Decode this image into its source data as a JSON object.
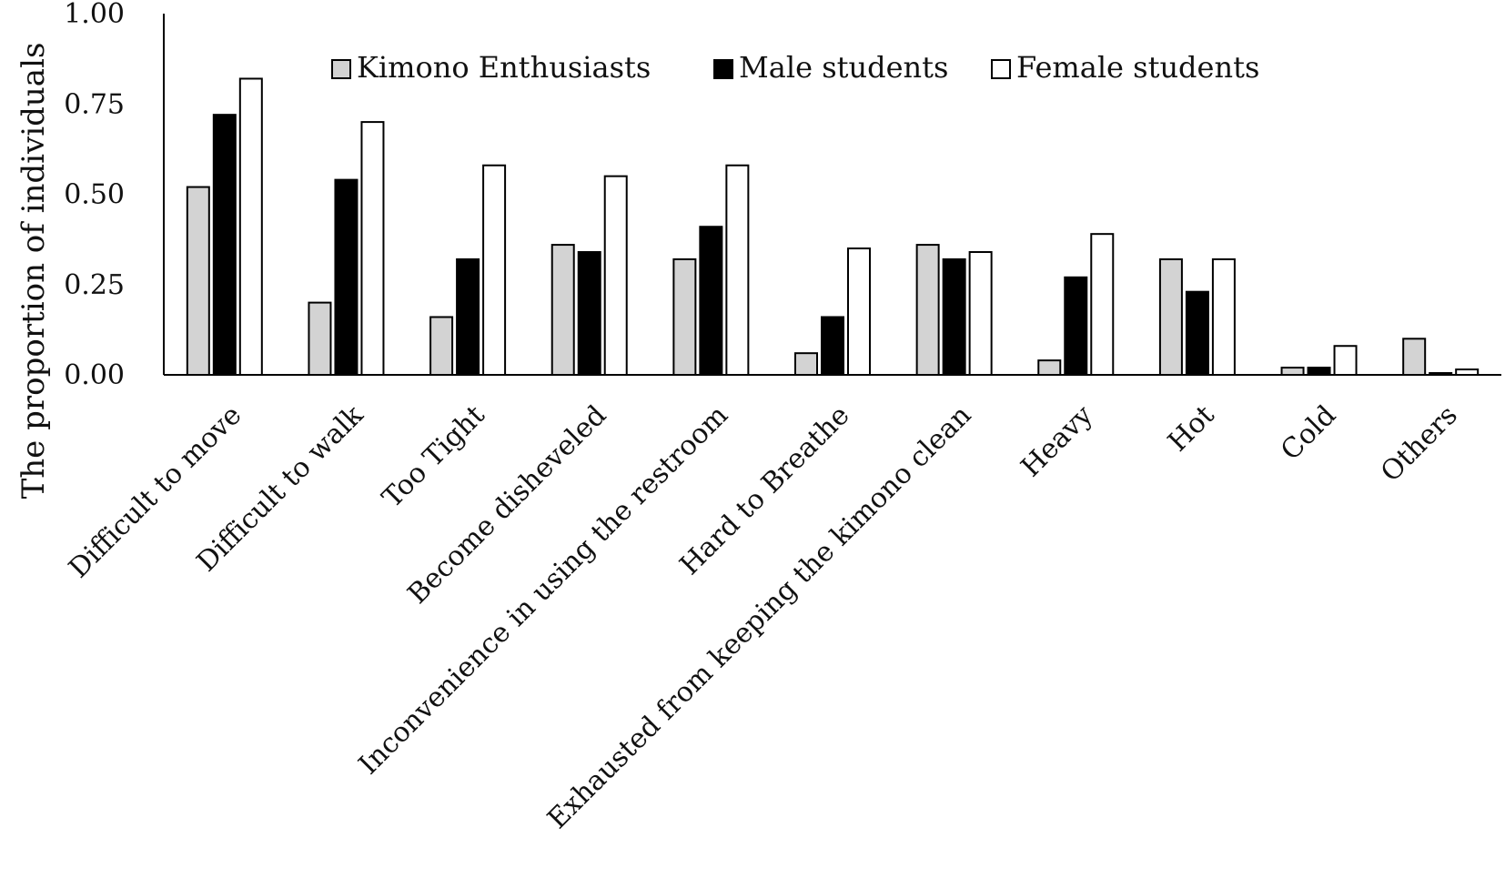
{
  "chart_data": {
    "type": "bar",
    "ylabel": "The proportion of individuals",
    "xlabel": "",
    "ylim": [
      0,
      1
    ],
    "yticks": [
      "0.00",
      "0.25",
      "0.50",
      "0.75",
      "1.00"
    ],
    "grid": false,
    "legend_position": "top",
    "categories": [
      "Difficult to move",
      "Difficult to walk",
      "Too Tight",
      "Become disheveled",
      "Inconvenience in using the restroom",
      "Hard to Breathe",
      "Exhausted from keeping the kimono clean",
      "Heavy",
      "Hot",
      "Cold",
      "Others"
    ],
    "series": [
      {
        "name": "Kimono Enthusiasts",
        "color": "#d3d3d3",
        "values": [
          0.52,
          0.2,
          0.16,
          0.36,
          0.32,
          0.06,
          0.36,
          0.04,
          0.32,
          0.02,
          0.1
        ]
      },
      {
        "name": "Male students",
        "color": "#000000",
        "values": [
          0.72,
          0.54,
          0.32,
          0.34,
          0.41,
          0.16,
          0.32,
          0.27,
          0.23,
          0.02,
          0.005
        ]
      },
      {
        "name": "Female students",
        "color": "#ffffff",
        "values": [
          0.82,
          0.7,
          0.58,
          0.55,
          0.58,
          0.35,
          0.34,
          0.39,
          0.32,
          0.08,
          0.015
        ]
      }
    ]
  }
}
